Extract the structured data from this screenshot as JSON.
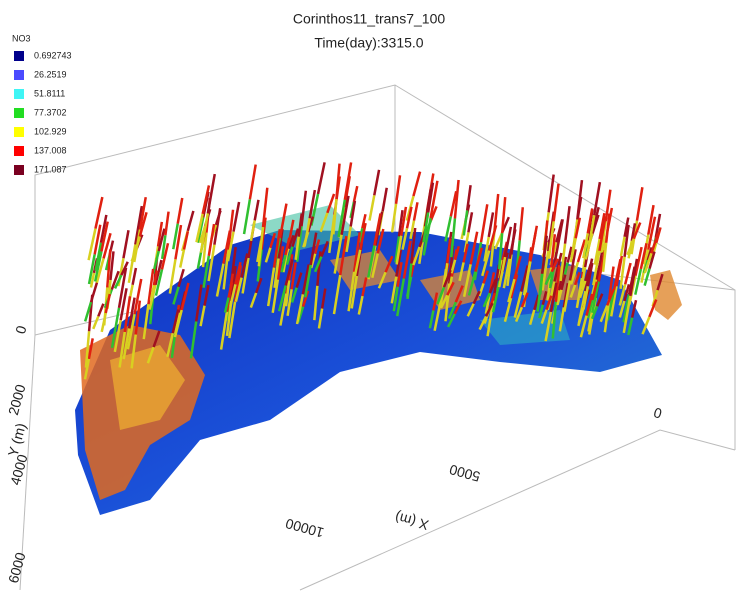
{
  "header": {
    "title": "Corinthos11_trans7_100",
    "subtitle": "Time(day):3315.0"
  },
  "legend": {
    "title": "NO3",
    "entries": [
      {
        "value": 0.692743,
        "color": "#00008b"
      },
      {
        "value": 26.2519,
        "color": "#4b4bff"
      },
      {
        "value": 51.8111,
        "color": "#3ff5f5"
      },
      {
        "value": 77.3702,
        "color": "#22dd22"
      },
      {
        "value": 102.929,
        "color": "#ffff00"
      },
      {
        "value": 137.008,
        "color": "#ff0000"
      },
      {
        "value": 171.087,
        "color": "#7a0020"
      }
    ]
  },
  "axes": {
    "y": {
      "label": "Y (m)",
      "ticks": [
        0,
        2000,
        4000,
        6000
      ]
    },
    "x": {
      "label": "X (m)",
      "ticks": [
        0,
        5000,
        10000
      ]
    }
  }
}
